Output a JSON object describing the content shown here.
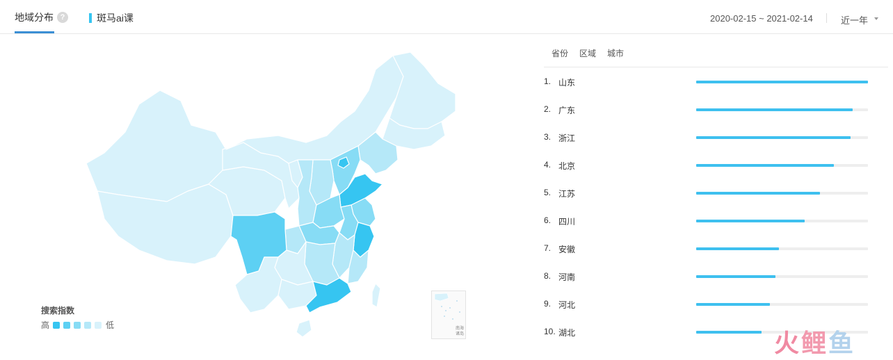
{
  "header": {
    "tab_label": "地域分布",
    "help_icon": "?",
    "keyword": "斑马ai课",
    "date_range": "2020-02-15 ~ 2021-02-14",
    "period": "近一年"
  },
  "legend": {
    "title": "搜索指数",
    "high": "高",
    "low": "低",
    "colors": [
      "#36c5f1",
      "#5dd0f3",
      "#87dcf5",
      "#b5e8f8",
      "#d8f2fb"
    ]
  },
  "inset": {
    "label": "南海诸岛"
  },
  "subtabs": {
    "province": "省份",
    "region": "区域",
    "city": "城市"
  },
  "ranking": [
    {
      "rank": "1.",
      "name": "山东",
      "value": 1.0
    },
    {
      "rank": "2.",
      "name": "广东",
      "value": 0.91
    },
    {
      "rank": "3.",
      "name": "浙江",
      "value": 0.9
    },
    {
      "rank": "4.",
      "name": "北京",
      "value": 0.8
    },
    {
      "rank": "5.",
      "name": "江苏",
      "value": 0.72
    },
    {
      "rank": "6.",
      "name": "四川",
      "value": 0.63
    },
    {
      "rank": "7.",
      "name": "安徽",
      "value": 0.48
    },
    {
      "rank": "8.",
      "name": "河南",
      "value": 0.46
    },
    {
      "rank": "9.",
      "name": "河北",
      "value": 0.43
    },
    {
      "rank": "10.",
      "name": "湖北",
      "value": 0.38
    }
  ],
  "watermark": {
    "c1": "火",
    "c2": "鲤",
    "c3": "鱼"
  }
}
